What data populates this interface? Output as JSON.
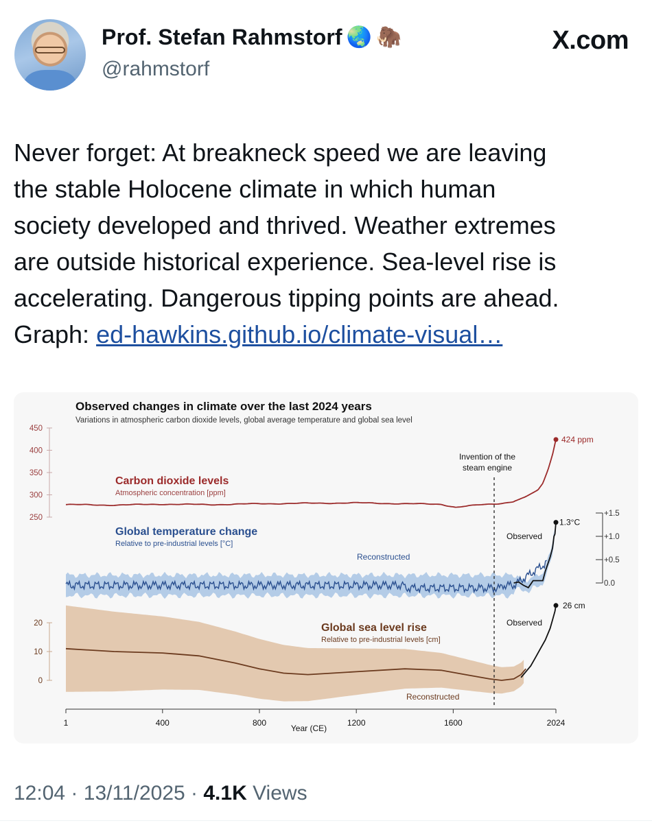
{
  "author": {
    "name": "Prof. Stefan Rahmstorf",
    "handle": "@rahmstorf",
    "name_emojis": [
      "🌏",
      "🦣"
    ]
  },
  "brand": "X.com",
  "tweet": {
    "lines": [
      "Never forget: At breakneck speed we are leaving",
      "the stable Holocene climate in which human",
      "society developed and thrived. Weather extremes",
      "are outside historical experience. Sea-level rise is",
      "accelerating. Dangerous tipping points are ahead."
    ],
    "graph_prefix": "Graph: ",
    "link_text": "ed-hawkins.github.io/climate-visual…"
  },
  "footer": {
    "time": "12:04",
    "date": "13/11/2025",
    "views_count": "4.1K",
    "views_label": "Views"
  },
  "chart_data": {
    "type": "line",
    "title": "Observed changes in climate over the last 2024 years",
    "subtitle": "Variations in atmospheric carbon dioxide levels, global average temperature and global sea level",
    "xlabel": "Year (CE)",
    "x_ticks": [
      "1",
      "400",
      "800",
      "1200",
      "1600",
      "2024"
    ],
    "x_range": [
      1,
      2024
    ],
    "annotation": {
      "year": 1769,
      "label_lines": [
        "Invention of the",
        "steam engine"
      ]
    },
    "panels": [
      {
        "id": "co2",
        "name": "Carbon dioxide levels",
        "sublabel": "Atmospheric concentration [ppm]",
        "color": "#9b2a2a",
        "y_ticks": [
          "450",
          "400",
          "350",
          "300",
          "250"
        ],
        "y_range": [
          250,
          450
        ],
        "series": {
          "x": [
            1,
            200,
            400,
            600,
            800,
            1000,
            1200,
            1400,
            1550,
            1610,
            1700,
            1800,
            1850,
            1900,
            1950,
            1970,
            1990,
            2010,
            2024
          ],
          "y": [
            278,
            277,
            279,
            278,
            280,
            281,
            282,
            280,
            279,
            272,
            277,
            281,
            285,
            296,
            311,
            326,
            354,
            390,
            424
          ]
        },
        "end_label": "424 ppm"
      },
      {
        "id": "temp",
        "name": "Global temperature change",
        "sublabel": "Relative to pre-industrial levels [°C]",
        "color": "#2a4f8f",
        "band_color": "#a8c4e4",
        "y_ticks": [
          "+1.5",
          "+1.0",
          "+0.5",
          "0.0"
        ],
        "y_range": [
          -0.3,
          1.5
        ],
        "reconstructed_label": "Reconstructed",
        "observed_label": "Observed",
        "observed": {
          "x": [
            1850,
            1870,
            1890,
            1910,
            1930,
            1950,
            1970,
            1980,
            1990,
            2000,
            2010,
            2016,
            2020,
            2024
          ],
          "y": [
            0.0,
            0.02,
            -0.05,
            -0.1,
            0.05,
            0.05,
            0.05,
            0.25,
            0.4,
            0.55,
            0.75,
            1.0,
            1.05,
            1.3
          ]
        },
        "end_label": "1.3°C"
      },
      {
        "id": "sea",
        "name": "Global sea level rise",
        "sublabel": "Relative to pre-industrial levels [cm]",
        "color": "#6b3a1e",
        "band_color": "#e3c9b0",
        "y_ticks": [
          "20",
          "10",
          "0"
        ],
        "y_range": [
          -5,
          25
        ],
        "reconstructed_label": "Reconstructed",
        "observed_label": "Observed",
        "reconstructed": {
          "x": [
            1,
            200,
            400,
            550,
            700,
            800,
            900,
            1000,
            1200,
            1400,
            1550,
            1650,
            1750,
            1800,
            1850,
            1880,
            1900
          ],
          "y": [
            11,
            10,
            9.5,
            8.5,
            6,
            4,
            2.5,
            2,
            3,
            4,
            3.5,
            2,
            0.5,
            0,
            0.5,
            2,
            4
          ]
        },
        "observed": {
          "x": [
            1880,
            1900,
            1920,
            1940,
            1960,
            1980,
            2000,
            2010,
            2020,
            2024
          ],
          "y": [
            1,
            3,
            5,
            8,
            11,
            14,
            18,
            21,
            24,
            26
          ]
        },
        "end_label": "26 cm"
      }
    ]
  }
}
